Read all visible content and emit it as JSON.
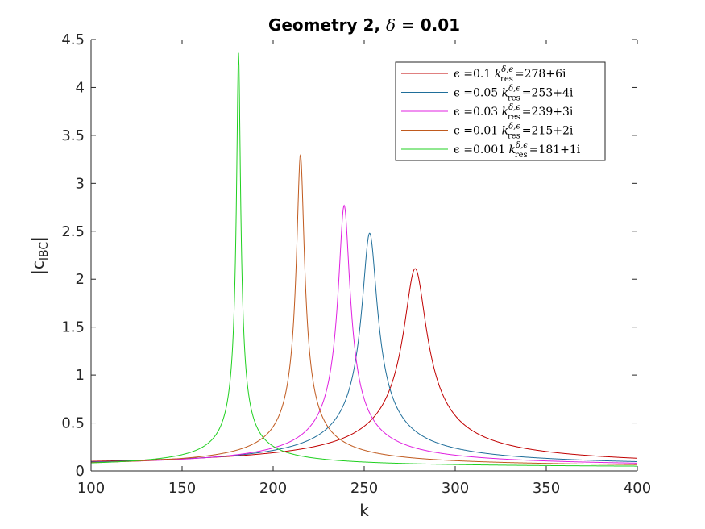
{
  "chart_data": {
    "type": "line",
    "title": "Geometry 2, δ = 0.01",
    "title_prefix": "Geometry 2, ",
    "title_delta": "δ",
    "title_suffix": " = 0.01",
    "xlabel": "k",
    "ylabel_main": "|c",
    "ylabel_sub": "IBC",
    "ylabel_close": "|",
    "xlim": [
      100,
      400
    ],
    "ylim": [
      0,
      4.5
    ],
    "xticks": [
      "100",
      "150",
      "200",
      "250",
      "300",
      "350",
      "400"
    ],
    "yticks": [
      "0",
      "0.5",
      "1",
      "1.5",
      "2",
      "2.5",
      "3",
      "3.5",
      "4",
      "4.5"
    ],
    "grid": false,
    "legend_position": "top-right",
    "series": [
      {
        "label_eps": "ϵ =0.1",
        "label_k": "k",
        "label_sup": "δ,ϵ",
        "label_sub": "res",
        "label_val": "=278+6i",
        "color": "#C00000",
        "peak_k": 278,
        "peak_value": 2.11,
        "width": 6,
        "baseline": 0.03
      },
      {
        "label_eps": "ϵ =0.05",
        "label_k": "k",
        "label_sup": "δ,ϵ",
        "label_sub": "res",
        "label_val": "=253+4i",
        "color": "#1F6E9A",
        "peak_k": 253,
        "peak_value": 2.48,
        "width": 4,
        "baseline": 0.03
      },
      {
        "label_eps": "ϵ =0.03",
        "label_k": "k",
        "label_sup": "δ,ϵ",
        "label_sub": "res",
        "label_val": "=239+3i",
        "color": "#E020E0",
        "peak_k": 239,
        "peak_value": 2.77,
        "width": 3,
        "baseline": 0.03
      },
      {
        "label_eps": "ϵ =0.01",
        "label_k": "k",
        "label_sup": "δ,ϵ",
        "label_sub": "res",
        "label_val": "=215+2i",
        "color": "#C05A1E",
        "peak_k": 215,
        "peak_value": 3.3,
        "width": 2,
        "baseline": 0.03
      },
      {
        "label_eps": "ϵ =0.001",
        "label_k": "k",
        "label_sup": "δ,ϵ",
        "label_sub": "res",
        "label_val": "=181+1i",
        "color": "#20D020",
        "peak_k": 181,
        "peak_value": 4.36,
        "width": 1,
        "baseline": 0.03
      }
    ]
  }
}
